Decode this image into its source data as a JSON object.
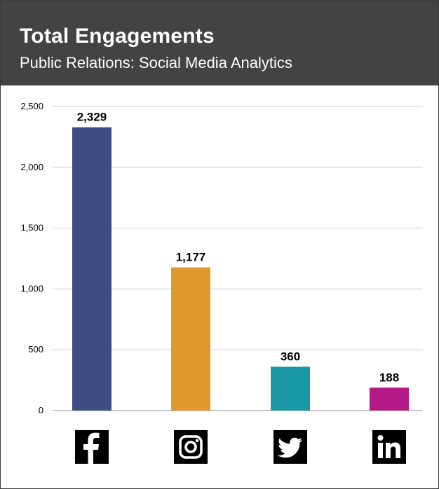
{
  "header": {
    "title": "Total Engagements",
    "subtitle": "Public Relations: Social Media Analytics"
  },
  "colors": {
    "header_bg": "#434343",
    "facebook": "#3c4d84",
    "instagram": "#df982c",
    "twitter": "#1b98a6",
    "linkedin": "#b61a86",
    "grid": "#c8c8c8",
    "icon_bg": "#000000"
  },
  "chart_data": {
    "type": "bar",
    "title": "Total Engagements",
    "subtitle": "Public Relations: Social Media Analytics",
    "categories": [
      "facebook-icon",
      "instagram-icon",
      "twitter-icon",
      "linkedin-icon"
    ],
    "values": [
      2329,
      1177,
      360,
      188
    ],
    "value_labels": [
      "2,329",
      "1,177",
      "360",
      "188"
    ],
    "ylim": [
      0,
      2500
    ],
    "yticks": [
      0,
      500,
      1000,
      1500,
      2000,
      2500
    ],
    "ytick_labels": [
      "0",
      "500",
      "1,000",
      "1,500",
      "2,000",
      "2,500"
    ],
    "grid": true,
    "xlabel": "",
    "ylabel": ""
  }
}
